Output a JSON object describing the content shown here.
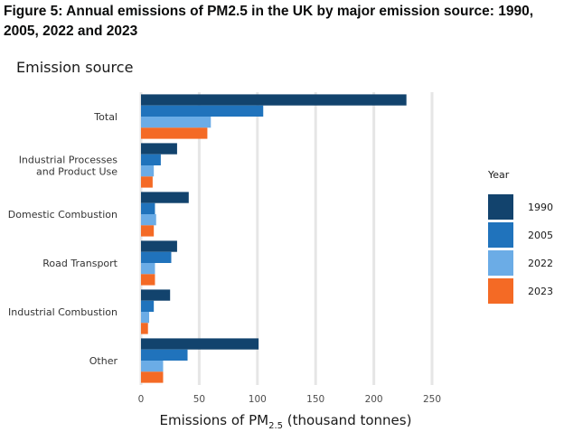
{
  "figure_title": "Figure 5: Annual emissions of PM2.5 in the UK by major emission source: 1990, 2005, 2022 and 2023",
  "chart_data": {
    "type": "bar",
    "orientation": "horizontal",
    "ylabel": "Emission source",
    "xlabel": "Emissions of PM",
    "xlabel_subscript": "2.5",
    "xlabel_suffix": " (thousand tonnes)",
    "categories": [
      "Total",
      "Industrial Processes\nand Product Use",
      "Domestic Combustion",
      "Road Transport",
      "Industrial Combustion",
      "Other"
    ],
    "series": [
      {
        "name": "1990",
        "color": "#12436D",
        "values": [
          228,
          31,
          41,
          31,
          25,
          101
        ]
      },
      {
        "name": "2005",
        "color": "#2073BC",
        "values": [
          105,
          17,
          12,
          26,
          11,
          40
        ]
      },
      {
        "name": "2022",
        "color": "#6BACE6",
        "values": [
          60,
          11,
          13,
          12,
          7,
          19
        ]
      },
      {
        "name": "2023",
        "color": "#F46A25",
        "values": [
          57,
          10,
          11,
          12,
          6,
          19
        ]
      }
    ],
    "xlim": [
      0,
      250
    ],
    "xticks": [
      0,
      50,
      100,
      150,
      200,
      250
    ],
    "grid": true,
    "legend_title": "Year",
    "legend_position": "right"
  }
}
